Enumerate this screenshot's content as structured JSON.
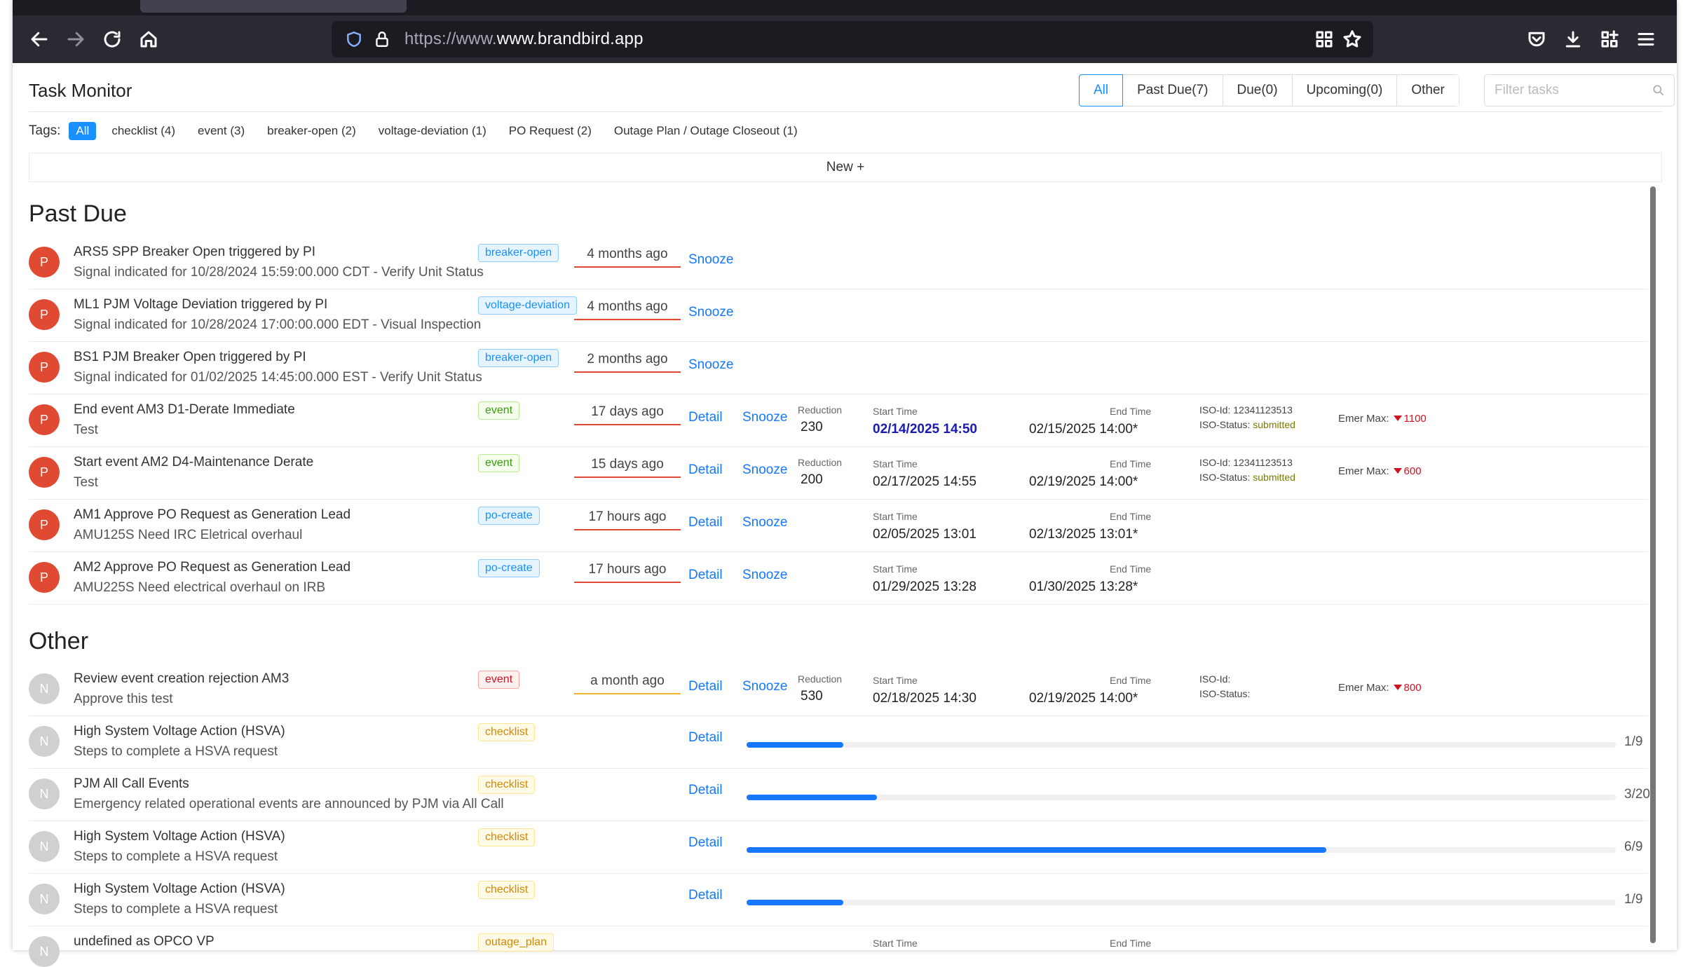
{
  "browser": {
    "url_prefix": "https://www.",
    "url_host": "www.brandbird.app"
  },
  "app": {
    "title": "Task Monitor"
  },
  "filters": [
    {
      "label": "All",
      "active": true
    },
    {
      "label": "Past Due(7)"
    },
    {
      "label": "Due(0)"
    },
    {
      "label": "Upcoming(0)"
    },
    {
      "label": "Other"
    }
  ],
  "search": {
    "placeholder": "Filter tasks"
  },
  "tags": {
    "label": "Tags:",
    "items": [
      "All",
      "checklist (4)",
      "event (3)",
      "breaker-open (2)",
      "voltage-deviation (1)",
      "PO Request (2)",
      "Outage Plan / Outage Closeout (1)"
    ]
  },
  "new_label": "New +",
  "labels": {
    "detail": "Detail",
    "snooze": "Snooze",
    "reduction": "Reduction",
    "start_time": "Start Time",
    "end_time": "End Time",
    "iso_id": "ISO-Id:",
    "iso_status": "ISO-Status:",
    "emer_max": "Emer Max:"
  },
  "sections": {
    "past_due": "Past Due",
    "other": "Other"
  },
  "past_due_rows": [
    {
      "avatar": "P",
      "title": "ARS5 SPP Breaker Open triggered by PI",
      "subtitle": "Signal indicated for 10/28/2024 15:59:00.000 CDT - Verify Unit Status",
      "tag": "breaker-open",
      "ago": "4 months ago"
    },
    {
      "avatar": "P",
      "title": "ML1 PJM Voltage Deviation triggered by PI",
      "subtitle": "Signal indicated for 10/28/2024 17:00:00.000 EDT - Visual Inspection",
      "tag": "voltage-deviation",
      "ago": "4 months ago"
    },
    {
      "avatar": "P",
      "title": "BS1 PJM Breaker Open triggered by PI",
      "subtitle": "Signal indicated for 01/02/2025 14:45:00.000 EST - Verify Unit Status",
      "tag": "breaker-open",
      "ago": "2 months ago"
    },
    {
      "avatar": "P",
      "title": "End event AM3 D1-Derate Immediate",
      "subtitle": "Test",
      "tag": "event",
      "ago": "17 days ago",
      "reduction": "230",
      "start": "02/14/2025 14:50",
      "end": "02/15/2025 14:00*",
      "iso_id": "12341123513",
      "iso_status": "submitted",
      "emer": "1100"
    },
    {
      "avatar": "P",
      "title": "Start event AM2 D4-Maintenance Derate",
      "subtitle": "Test",
      "tag": "event",
      "ago": "15 days ago",
      "reduction": "200",
      "start": "02/17/2025 14:55",
      "end": "02/19/2025 14:00*",
      "iso_id": "12341123513",
      "iso_status": "submitted",
      "emer": "600"
    },
    {
      "avatar": "P",
      "title": "AM1 Approve PO Request as Generation Lead",
      "subtitle": "AMU125S Need IRC Eletrical overhaul",
      "tag": "po-create",
      "ago": "17 hours ago",
      "start": "02/05/2025 13:01",
      "end": "02/13/2025 13:01*"
    },
    {
      "avatar": "P",
      "title": "AM2 Approve PO Request as Generation Lead",
      "subtitle": "AMU225S Need electrical overhaul on IRB",
      "tag": "po-create",
      "ago": "17 hours ago",
      "start": "01/29/2025 13:28",
      "end": "01/30/2025 13:28*"
    }
  ],
  "other_rows": [
    {
      "avatar": "N",
      "title": "Review event creation rejection AM3",
      "subtitle": "Approve this test",
      "tag": "event",
      "ago": "a month ago",
      "reduction": "530",
      "start": "02/18/2025 14:30",
      "end": "02/19/2025 14:00*",
      "emer": "800"
    },
    {
      "avatar": "N",
      "title": "High System Voltage Action (HSVA)",
      "subtitle": "Steps to complete a HSVA request",
      "tag": "checklist",
      "progress": 0.111,
      "progress_text": "1/9"
    },
    {
      "avatar": "N",
      "title": "PJM All Call Events",
      "subtitle": "Emergency related operational events are announced by PJM via All Call",
      "tag": "checklist",
      "progress": 0.15,
      "progress_text": "3/20"
    },
    {
      "avatar": "N",
      "title": "High System Voltage Action (HSVA)",
      "subtitle": "Steps to complete a HSVA request",
      "tag": "checklist",
      "progress": 0.667,
      "progress_text": "6/9"
    },
    {
      "avatar": "N",
      "title": "High System Voltage Action (HSVA)",
      "subtitle": "Steps to complete a HSVA request",
      "tag": "checklist",
      "progress": 0.111,
      "progress_text": "1/9"
    },
    {
      "avatar": "N",
      "title": "undefined as OPCO VP",
      "subtitle": "",
      "tag": "outage_plan",
      "start_label_only": true
    }
  ],
  "colors": {
    "accent": "#1890ff",
    "danger": "#e04a32",
    "warning": "#f0b429"
  }
}
